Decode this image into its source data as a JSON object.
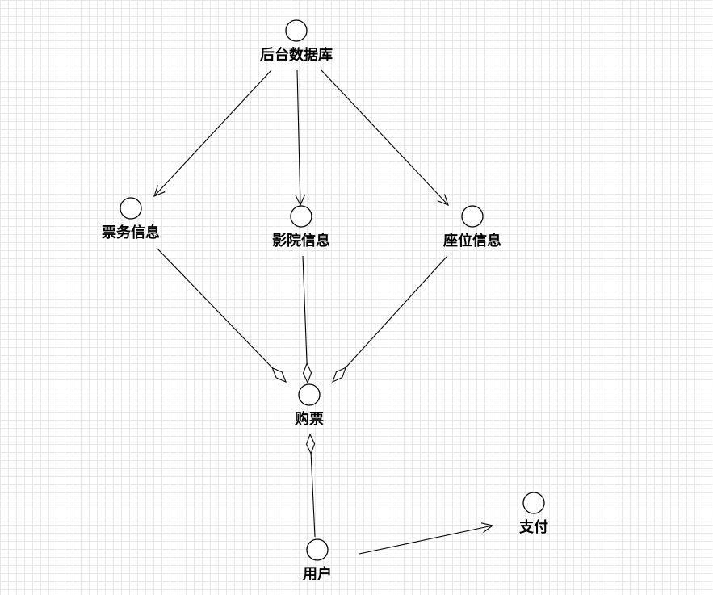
{
  "diagram": {
    "nodes": [
      {
        "id": "backend_db",
        "label": "后台数据库"
      },
      {
        "id": "ticket_info",
        "label": "票务信息"
      },
      {
        "id": "cinema_info",
        "label": "影院信息"
      },
      {
        "id": "seat_info",
        "label": "座位信息"
      },
      {
        "id": "purchase",
        "label": "购票"
      },
      {
        "id": "user",
        "label": "用户"
      },
      {
        "id": "payment",
        "label": "支付"
      }
    ],
    "edges": [
      {
        "from": "backend_db",
        "to": "ticket_info",
        "type": "arrow"
      },
      {
        "from": "backend_db",
        "to": "cinema_info",
        "type": "arrow"
      },
      {
        "from": "backend_db",
        "to": "seat_info",
        "type": "arrow"
      },
      {
        "from": "ticket_info",
        "to": "purchase",
        "type": "aggregation"
      },
      {
        "from": "cinema_info",
        "to": "purchase",
        "type": "aggregation"
      },
      {
        "from": "seat_info",
        "to": "purchase",
        "type": "aggregation"
      },
      {
        "from": "user",
        "to": "purchase",
        "type": "aggregation"
      },
      {
        "from": "user",
        "to": "payment",
        "type": "arrow"
      }
    ]
  }
}
